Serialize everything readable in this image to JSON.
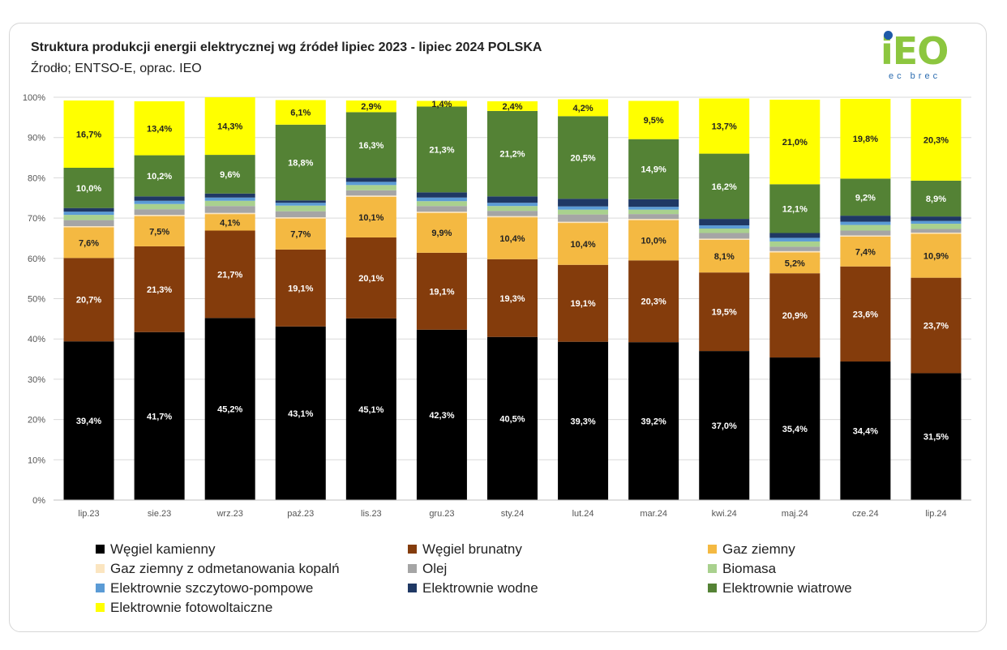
{
  "header": {
    "title": "Struktura produkcji energii elektrycznej wg źródeł lipiec 2023 - lipiec 2024 POLSKA",
    "subtitle": "Źrodło; ENTSO-E, oprac. IEO",
    "logo_text": "iEO",
    "logo_sub": "ec brec"
  },
  "chart_data": {
    "type": "bar",
    "stacked": true,
    "percent": true,
    "categories": [
      "lip.23",
      "sie.23",
      "wrz.23",
      "paź.23",
      "lis.23",
      "gru.23",
      "sty.24",
      "lut.24",
      "mar.24",
      "kwi.24",
      "maj.24",
      "cze.24",
      "lip.24"
    ],
    "ylim": [
      0,
      100
    ],
    "yticks": [
      "0%",
      "10%",
      "20%",
      "30%",
      "40%",
      "50%",
      "60%",
      "70%",
      "80%",
      "90%",
      "100%"
    ],
    "grid": true,
    "legend_position": "bottom",
    "series": [
      {
        "name": "Węgiel kamienny",
        "color": "#000000",
        "label_color": "#ffffff",
        "labels": true,
        "values": [
          39.4,
          41.7,
          45.2,
          43.1,
          45.1,
          42.3,
          40.5,
          39.3,
          39.2,
          37.0,
          35.4,
          34.4,
          31.5
        ]
      },
      {
        "name": "Węgiel brunatny",
        "color": "#843c0c",
        "label_color": "#ffffff",
        "labels": true,
        "values": [
          20.7,
          21.3,
          21.7,
          19.1,
          20.1,
          19.1,
          19.3,
          19.1,
          20.3,
          19.5,
          20.9,
          23.6,
          23.7
        ]
      },
      {
        "name": "Gaz ziemny",
        "color": "#f4b942",
        "label_color": "#222222",
        "labels": true,
        "values": [
          7.6,
          7.5,
          4.1,
          7.7,
          10.1,
          9.9,
          10.4,
          10.4,
          10.0,
          8.1,
          5.2,
          7.4,
          10.9
        ]
      },
      {
        "name": "Gaz ziemny z odmetanowania kopalń",
        "color": "#fbe5c0",
        "labels": false,
        "values": [
          0.3,
          0.3,
          0.3,
          0.3,
          0.3,
          0.3,
          0.3,
          0.3,
          0.3,
          0.3,
          0.3,
          0.3,
          0.3
        ]
      },
      {
        "name": "Olej",
        "color": "#a5a5a5",
        "labels": false,
        "values": [
          1.5,
          1.4,
          1.7,
          1.5,
          1.3,
          1.4,
          1.3,
          1.8,
          1.2,
          1.4,
          1.1,
          1.2,
          0.9
        ]
      },
      {
        "name": "Biomasa",
        "color": "#a9d18e",
        "labels": false,
        "values": [
          1.3,
          1.3,
          1.3,
          1.4,
          1.3,
          1.2,
          1.2,
          1.2,
          1.1,
          1.1,
          1.3,
          1.4,
          1.3
        ]
      },
      {
        "name": "Elektrownie szczytowo-pompowe",
        "color": "#5b9bd5",
        "labels": false,
        "values": [
          0.8,
          0.8,
          0.8,
          0.7,
          0.8,
          0.9,
          0.8,
          0.8,
          0.7,
          0.8,
          0.9,
          0.8,
          0.7
        ]
      },
      {
        "name": "Elektrownie wodne",
        "color": "#1f3864",
        "labels": false,
        "values": [
          0.9,
          1.1,
          1.0,
          0.6,
          1.0,
          1.3,
          1.6,
          1.9,
          1.9,
          1.6,
          1.2,
          1.5,
          1.1
        ]
      },
      {
        "name": "Elektrownie wiatrowe",
        "color": "#548235",
        "label_color": "#ffffff",
        "labels": true,
        "values": [
          10.0,
          10.2,
          9.6,
          18.8,
          16.3,
          21.3,
          21.2,
          20.5,
          14.9,
          16.2,
          12.1,
          9.2,
          8.9
        ]
      },
      {
        "name": "Elektrownie fotowoltaiczne",
        "color": "#ffff00",
        "label_color": "#222222",
        "labels": true,
        "values": [
          16.7,
          13.4,
          14.3,
          6.1,
          2.9,
          1.4,
          2.4,
          4.2,
          9.5,
          13.7,
          21.0,
          19.8,
          20.3
        ]
      }
    ]
  }
}
